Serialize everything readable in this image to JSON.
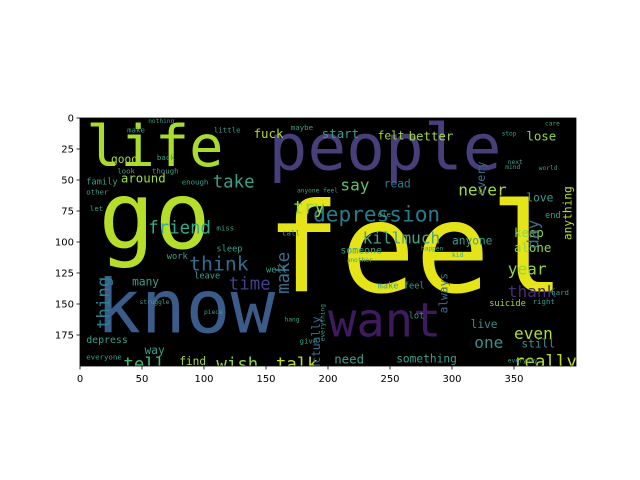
{
  "chart_data": {
    "type": "wordcloud",
    "title": "",
    "xlabel": "",
    "ylabel": "",
    "xlim": [
      0,
      400
    ],
    "ylim": [
      200,
      0
    ],
    "background": "#000000",
    "x_ticks": [
      0,
      50,
      100,
      150,
      200,
      250,
      300,
      350
    ],
    "y_ticks": [
      0,
      25,
      50,
      75,
      100,
      125,
      150,
      175
    ],
    "words": [
      {
        "text": "feel",
        "x": 150,
        "y": 60,
        "size": 100,
        "color": "#e4e418",
        "rotate": 0
      },
      {
        "text": "people",
        "x": 152,
        "y": 0,
        "size": 52,
        "color": "#463f7a",
        "rotate": 0
      },
      {
        "text": "life",
        "x": 5,
        "y": 2,
        "size": 46,
        "color": "#a9dc2e",
        "rotate": 0
      },
      {
        "text": "go",
        "x": 15,
        "y": 45,
        "size": 75,
        "color": "#b5de2b",
        "rotate": 0
      },
      {
        "text": "know",
        "x": 13,
        "y": 125,
        "size": 60,
        "color": "#3b5c8a",
        "rotate": 0
      },
      {
        "text": "want",
        "x": 200,
        "y": 146,
        "size": 38,
        "color": "#3e1a5e",
        "rotate": 0
      },
      {
        "text": "depression",
        "x": 188,
        "y": 70,
        "size": 17,
        "color": "#2a7b8a",
        "rotate": 0
      },
      {
        "text": "take",
        "x": 107,
        "y": 45,
        "size": 14,
        "color": "#3b9f8a",
        "rotate": 0
      },
      {
        "text": "say",
        "x": 210,
        "y": 48,
        "size": 13,
        "color": "#5fc26a",
        "rotate": 0
      },
      {
        "text": "read",
        "x": 245,
        "y": 49,
        "size": 9,
        "color": "#2e7a8e",
        "rotate": 0
      },
      {
        "text": "never",
        "x": 305,
        "y": 52,
        "size": 13,
        "color": "#a2d93e",
        "rotate": 0
      },
      {
        "text": "try",
        "x": 172,
        "y": 66,
        "size": 14,
        "color": "#8fd744",
        "rotate": 0
      },
      {
        "text": "friend",
        "x": 55,
        "y": 82,
        "size": 14,
        "color": "#37a88c",
        "rotate": 0
      },
      {
        "text": "think",
        "x": 88,
        "y": 110,
        "size": 16,
        "color": "#2e6d8e",
        "rotate": 0
      },
      {
        "text": "time",
        "x": 120,
        "y": 127,
        "size": 14,
        "color": "#3f3f8a",
        "rotate": 0
      },
      {
        "text": "thing",
        "x": 14,
        "y": 128,
        "size": 14,
        "color": "#2c7e8e",
        "rotate": -90
      },
      {
        "text": "make",
        "x": 159,
        "y": 108,
        "size": 14,
        "color": "#3b6f8e",
        "rotate": -90
      },
      {
        "text": "tell",
        "x": 35,
        "y": 192,
        "size": 14,
        "color": "#3fbc73",
        "rotate": 0
      },
      {
        "text": "wish",
        "x": 110,
        "y": 192,
        "size": 14,
        "color": "#8bd646",
        "rotate": 0
      },
      {
        "text": "talk",
        "x": 158,
        "y": 192,
        "size": 14,
        "color": "#b9de28",
        "rotate": 0
      },
      {
        "text": "killmuch",
        "x": 228,
        "y": 91,
        "size": 13,
        "color": "#48a18a",
        "rotate": 0
      },
      {
        "text": "year",
        "x": 345,
        "y": 116,
        "size": 13,
        "color": "#8ed645",
        "rotate": 0
      },
      {
        "text": "thank",
        "x": 345,
        "y": 134,
        "size": 13,
        "color": "#4b2a7a",
        "rotate": 0
      },
      {
        "text": "really",
        "x": 350,
        "y": 190,
        "size": 14,
        "color": "#b8de29",
        "rotate": 0
      },
      {
        "text": "even",
        "x": 350,
        "y": 168,
        "size": 13,
        "color": "#b3dc2b",
        "rotate": 0
      },
      {
        "text": "one",
        "x": 318,
        "y": 175,
        "size": 13,
        "color": "#3e8d8c",
        "rotate": 0
      },
      {
        "text": "live",
        "x": 315,
        "y": 162,
        "size": 9,
        "color": "#3e8d8c",
        "rotate": 0
      },
      {
        "text": "still",
        "x": 356,
        "y": 178,
        "size": 9,
        "color": "#3e8d8c",
        "rotate": 0
      },
      {
        "text": "alone",
        "x": 350,
        "y": 100,
        "size": 10,
        "color": "#8ed645",
        "rotate": 0
      },
      {
        "text": "keep",
        "x": 350,
        "y": 88,
        "size": 10,
        "color": "#8ed645",
        "rotate": 0
      },
      {
        "text": "day",
        "x": 360,
        "y": 82,
        "size": 13,
        "color": "#3b6f8e",
        "rotate": -90
      },
      {
        "text": "anyone",
        "x": 300,
        "y": 95,
        "size": 9,
        "color": "#3b9f8a",
        "rotate": 0
      },
      {
        "text": "always",
        "x": 290,
        "y": 125,
        "size": 9,
        "color": "#3b6f8e",
        "rotate": -90
      },
      {
        "text": "lose",
        "x": 360,
        "y": 10,
        "size": 10,
        "color": "#8ed645",
        "rotate": 0
      },
      {
        "text": "love",
        "x": 360,
        "y": 60,
        "size": 9,
        "color": "#3b9f8a",
        "rotate": 0
      },
      {
        "text": "anything",
        "x": 390,
        "y": 55,
        "size": 9,
        "color": "#b3dc2b",
        "rotate": -90
      },
      {
        "text": "end",
        "x": 375,
        "y": 75,
        "size": 7,
        "color": "#3b9f8a",
        "rotate": 0
      },
      {
        "text": "fuck",
        "x": 140,
        "y": 8,
        "size": 10,
        "color": "#b3dc2b",
        "rotate": 0
      },
      {
        "text": "start",
        "x": 195,
        "y": 8,
        "size": 10,
        "color": "#3b9f8a",
        "rotate": 0
      },
      {
        "text": "felt",
        "x": 240,
        "y": 10,
        "size": 9,
        "color": "#a2d93e",
        "rotate": 0
      },
      {
        "text": "better",
        "x": 265,
        "y": 10,
        "size": 10,
        "color": "#a2d93e",
        "rotate": 0
      },
      {
        "text": "good",
        "x": 25,
        "y": 29,
        "size": 9,
        "color": "#b3dc2b",
        "rotate": 0
      },
      {
        "text": "around",
        "x": 33,
        "y": 44,
        "size": 10,
        "color": "#a2d93e",
        "rotate": 0
      },
      {
        "text": "every",
        "x": 320,
        "y": 35,
        "size": 9,
        "color": "#3b6f8e",
        "rotate": -90
      },
      {
        "text": "someone",
        "x": 210,
        "y": 103,
        "size": 8,
        "color": "#3b9f8a",
        "rotate": 0
      },
      {
        "text": "need",
        "x": 205,
        "y": 190,
        "size": 10,
        "color": "#3b9f8a",
        "rotate": 0
      },
      {
        "text": "something",
        "x": 255,
        "y": 190,
        "size": 9,
        "color": "#3b9f8a",
        "rotate": 0
      },
      {
        "text": "actually",
        "x": 187,
        "y": 160,
        "size": 9,
        "color": "#3b6f8e",
        "rotate": -90
      },
      {
        "text": "find",
        "x": 80,
        "y": 192,
        "size": 9,
        "color": "#a2d93e",
        "rotate": 0
      },
      {
        "text": "way",
        "x": 52,
        "y": 183,
        "size": 9,
        "color": "#3b9f8a",
        "rotate": 0
      },
      {
        "text": "depress",
        "x": 5,
        "y": 175,
        "size": 8,
        "color": "#3b9f8a",
        "rotate": 0
      },
      {
        "text": "many",
        "x": 42,
        "y": 128,
        "size": 9,
        "color": "#3b9f8a",
        "rotate": 0
      },
      {
        "text": "make feel",
        "x": 240,
        "y": 132,
        "size": 7,
        "color": "#3b9f8a",
        "rotate": 0
      },
      {
        "text": "suicide",
        "x": 330,
        "y": 146,
        "size": 7,
        "color": "#a2d93e",
        "rotate": 0
      },
      {
        "text": "lot",
        "x": 265,
        "y": 156,
        "size": 7,
        "color": "#3b9f8a",
        "rotate": 0
      },
      {
        "text": "sleep",
        "x": 110,
        "y": 102,
        "size": 7,
        "color": "#3b9f8a",
        "rotate": 0
      },
      {
        "text": "well",
        "x": 150,
        "y": 119,
        "size": 7,
        "color": "#3b9f8a",
        "rotate": 0
      },
      {
        "text": "leave",
        "x": 92,
        "y": 124,
        "size": 7,
        "color": "#3b9f8a",
        "rotate": 0
      },
      {
        "text": "work",
        "x": 70,
        "y": 108,
        "size": 7,
        "color": "#3b9f8a",
        "rotate": 0
      },
      {
        "text": "family",
        "x": 5,
        "y": 48,
        "size": 7,
        "color": "#3b9f8a",
        "rotate": 0
      },
      {
        "text": "other",
        "x": 5,
        "y": 57,
        "size": 6,
        "color": "#3b9f8a",
        "rotate": 0
      },
      {
        "text": "let",
        "x": 8,
        "y": 70,
        "size": 6,
        "color": "#3b9f8a",
        "rotate": 0
      },
      {
        "text": "everyone",
        "x": 5,
        "y": 190,
        "size": 6,
        "color": "#3b9f8a",
        "rotate": 0
      },
      {
        "text": "make",
        "x": 38,
        "y": 7,
        "size": 6,
        "color": "#3b9f8a",
        "rotate": 0
      },
      {
        "text": "nothing",
        "x": 55,
        "y": 0,
        "size": 5,
        "color": "#3b9f8a",
        "rotate": 0
      },
      {
        "text": "little",
        "x": 108,
        "y": 7,
        "size": 6,
        "color": "#3b9f8a",
        "rotate": 0
      },
      {
        "text": "maybe",
        "x": 170,
        "y": 5,
        "size": 6,
        "color": "#3b9f8a",
        "rotate": 0
      },
      {
        "text": "back",
        "x": 62,
        "y": 29,
        "size": 6,
        "color": "#3b9f8a",
        "rotate": 0
      },
      {
        "text": "though",
        "x": 58,
        "y": 40,
        "size": 6,
        "color": "#3b9f8a",
        "rotate": 0
      },
      {
        "text": "look",
        "x": 30,
        "y": 40,
        "size": 6,
        "color": "#3b9f8a",
        "rotate": 0
      },
      {
        "text": "enough",
        "x": 82,
        "y": 49,
        "size": 6,
        "color": "#3b9f8a",
        "rotate": 0
      },
      {
        "text": "call",
        "x": 163,
        "y": 90,
        "size": 6,
        "color": "#3b9f8a",
        "rotate": 0
      },
      {
        "text": "miss",
        "x": 110,
        "y": 86,
        "size": 6,
        "color": "#3b9f8a",
        "rotate": 0
      },
      {
        "text": "hard",
        "x": 380,
        "y": 138,
        "size": 6,
        "color": "#3b9f8a",
        "rotate": 0
      },
      {
        "text": "right",
        "x": 365,
        "y": 145,
        "size": 6,
        "color": "#3b9f8a",
        "rotate": 0
      },
      {
        "text": "give",
        "x": 177,
        "y": 177,
        "size": 6,
        "color": "#3b9f8a",
        "rotate": 0
      },
      {
        "text": "die",
        "x": 240,
        "y": 75,
        "size": 6,
        "color": "#3b9f8a",
        "rotate": 0
      },
      {
        "text": "anyone feel",
        "x": 175,
        "y": 56,
        "size": 5,
        "color": "#3b9f8a",
        "rotate": 0
      },
      {
        "text": "happen",
        "x": 275,
        "y": 103,
        "size": 5,
        "color": "#3b9f8a",
        "rotate": 0
      },
      {
        "text": "another",
        "x": 215,
        "y": 112,
        "size": 5,
        "color": "#3b9f8a",
        "rotate": 0
      },
      {
        "text": "next",
        "x": 345,
        "y": 33,
        "size": 5,
        "color": "#3b9f8a",
        "rotate": 0
      },
      {
        "text": "stop",
        "x": 340,
        "y": 10,
        "size": 5,
        "color": "#3b9f8a",
        "rotate": 0
      },
      {
        "text": "mind",
        "x": 343,
        "y": 37,
        "size": 5,
        "color": "#3b9f8a",
        "rotate": 0
      },
      {
        "text": "world",
        "x": 370,
        "y": 38,
        "size": 5,
        "color": "#3b9f8a",
        "rotate": 0
      },
      {
        "text": "care",
        "x": 375,
        "y": 2,
        "size": 5,
        "color": "#3b9f8a",
        "rotate": 0
      },
      {
        "text": "hang",
        "x": 165,
        "y": 160,
        "size": 5,
        "color": "#3b9f8a",
        "rotate": 0
      },
      {
        "text": "everything",
        "x": 194,
        "y": 150,
        "size": 5,
        "color": "#3b9f8a",
        "rotate": -90
      },
      {
        "text": "piece",
        "x": 100,
        "y": 154,
        "size": 5,
        "color": "#3b9f8a",
        "rotate": 0
      },
      {
        "text": "kid",
        "x": 300,
        "y": 108,
        "size": 5,
        "color": "#3b9f8a",
        "rotate": 0
      },
      {
        "text": "struggle",
        "x": 48,
        "y": 146,
        "size": 5,
        "color": "#3b9f8a",
        "rotate": 0
      },
      {
        "text": "everyday",
        "x": 345,
        "y": 193,
        "size": 5,
        "color": "#3b9f8a",
        "rotate": 0
      }
    ]
  }
}
